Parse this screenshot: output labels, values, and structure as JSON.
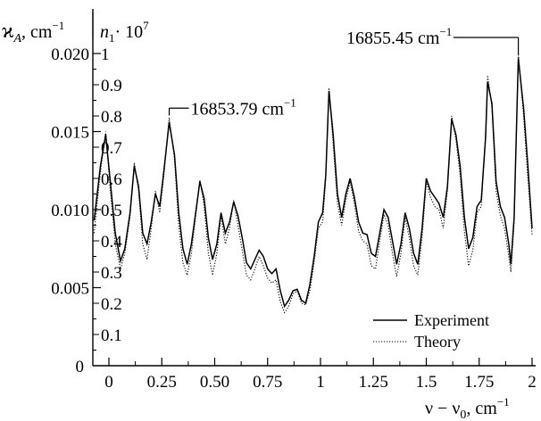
{
  "chart_data": {
    "type": "line",
    "xlabel": "ν − ν0, cm−1",
    "xlabel_parts": {
      "main": "ν − ν",
      "sub": "0",
      "unit": ", cm",
      "sup": "−1"
    },
    "left_axis_label": {
      "symbol": "ϰ",
      "sub": "A",
      "unit": ", cm",
      "sup": "−1"
    },
    "right_axis_label": {
      "symbol": "n",
      "sub": "1",
      "mid": "· 10",
      "sup": "7"
    },
    "xlim": [
      -0.1,
      2.05
    ],
    "ylim_left": [
      0,
      0.02
    ],
    "ylim_right": [
      0,
      1
    ],
    "x_ticks": [
      {
        "value": 0,
        "label": "0"
      },
      {
        "value": 0.25,
        "label": "0.25"
      },
      {
        "value": 0.5,
        "label": "0.50"
      },
      {
        "value": 0.75,
        "label": "0.75"
      },
      {
        "value": 1,
        "label": "1"
      },
      {
        "value": 1.25,
        "label": "1.25"
      },
      {
        "value": 1.5,
        "label": "1.5"
      },
      {
        "value": 1.75,
        "label": "1.75"
      },
      {
        "value": 2,
        "label": "2"
      }
    ],
    "left_ticks": [
      {
        "value": 0,
        "label": "0"
      },
      {
        "value": 0.005,
        "label": "0.005"
      },
      {
        "value": 0.01,
        "label": "0.010"
      },
      {
        "value": 0.015,
        "label": "0.015"
      },
      {
        "value": 0.02,
        "label": "0.020"
      }
    ],
    "right_ticks": [
      {
        "value": 0.1,
        "label": "0.1"
      },
      {
        "value": 0.2,
        "label": "0.2"
      },
      {
        "value": 0.3,
        "label": "0.3"
      },
      {
        "value": 0.4,
        "label": "0.4"
      },
      {
        "value": 0.5,
        "label": "0.5"
      },
      {
        "value": 0.6,
        "label": "0.6"
      },
      {
        "value": 0.7,
        "label": "0.7"
      },
      {
        "value": 0.8,
        "label": "0.8"
      },
      {
        "value": 0.9,
        "label": "0.9"
      },
      {
        "value": 1,
        "label": "1"
      }
    ],
    "annotations": [
      {
        "text": "16853.79 cm",
        "sup": "−1",
        "x": 0.285,
        "y": 0.0158,
        "label_y": 0.0165,
        "label_x_end": 0.6
      },
      {
        "text": "16855.45 cm",
        "sup": "−1",
        "x": 1.935,
        "y": 0.0197,
        "label_y": 0.02035,
        "label_x_end": 1.935
      }
    ],
    "legend": {
      "position": "bottom-right",
      "entries": [
        {
          "name": "Experiment",
          "style": "solid"
        },
        {
          "name": "Theory",
          "style": "dotted"
        }
      ]
    },
    "series": [
      {
        "name": "Experiment",
        "style": "solid",
        "points": [
          [
            -0.07,
            0.0093
          ],
          [
            -0.04,
            0.0128
          ],
          [
            -0.015,
            0.0148
          ],
          [
            0.005,
            0.012
          ],
          [
            0.03,
            0.0085
          ],
          [
            0.055,
            0.0067
          ],
          [
            0.075,
            0.0075
          ],
          [
            0.1,
            0.0098
          ],
          [
            0.12,
            0.0128
          ],
          [
            0.14,
            0.0115
          ],
          [
            0.16,
            0.0085
          ],
          [
            0.18,
            0.0078
          ],
          [
            0.2,
            0.0092
          ],
          [
            0.22,
            0.011
          ],
          [
            0.24,
            0.0102
          ],
          [
            0.26,
            0.0125
          ],
          [
            0.285,
            0.0156
          ],
          [
            0.31,
            0.0135
          ],
          [
            0.33,
            0.0098
          ],
          [
            0.35,
            0.0075
          ],
          [
            0.37,
            0.0065
          ],
          [
            0.39,
            0.0078
          ],
          [
            0.41,
            0.0098
          ],
          [
            0.43,
            0.0118
          ],
          [
            0.45,
            0.0107
          ],
          [
            0.47,
            0.0082
          ],
          [
            0.49,
            0.0068
          ],
          [
            0.51,
            0.0078
          ],
          [
            0.53,
            0.0098
          ],
          [
            0.55,
            0.0085
          ],
          [
            0.57,
            0.0092
          ],
          [
            0.59,
            0.0105
          ],
          [
            0.61,
            0.0096
          ],
          [
            0.63,
            0.0082
          ],
          [
            0.65,
            0.0066
          ],
          [
            0.67,
            0.0062
          ],
          [
            0.69,
            0.0068
          ],
          [
            0.71,
            0.0074
          ],
          [
            0.73,
            0.007
          ],
          [
            0.75,
            0.0062
          ],
          [
            0.77,
            0.0059
          ],
          [
            0.79,
            0.0062
          ],
          [
            0.81,
            0.0048
          ],
          [
            0.83,
            0.0038
          ],
          [
            0.85,
            0.0042
          ],
          [
            0.87,
            0.0048
          ],
          [
            0.89,
            0.0049
          ],
          [
            0.91,
            0.0042
          ],
          [
            0.93,
            0.004
          ],
          [
            0.95,
            0.0052
          ],
          [
            0.97,
            0.007
          ],
          [
            0.99,
            0.0092
          ],
          [
            1.01,
            0.0098
          ],
          [
            1.025,
            0.0122
          ],
          [
            1.04,
            0.0176
          ],
          [
            1.06,
            0.0148
          ],
          [
            1.08,
            0.011
          ],
          [
            1.1,
            0.0095
          ],
          [
            1.12,
            0.011
          ],
          [
            1.14,
            0.012
          ],
          [
            1.16,
            0.0108
          ],
          [
            1.18,
            0.0092
          ],
          [
            1.2,
            0.0085
          ],
          [
            1.22,
            0.0084
          ],
          [
            1.24,
            0.0072
          ],
          [
            1.26,
            0.007
          ],
          [
            1.28,
            0.0085
          ],
          [
            1.3,
            0.01
          ],
          [
            1.32,
            0.0095
          ],
          [
            1.34,
            0.008
          ],
          [
            1.36,
            0.0065
          ],
          [
            1.38,
            0.0078
          ],
          [
            1.4,
            0.0098
          ],
          [
            1.42,
            0.0088
          ],
          [
            1.44,
            0.0072
          ],
          [
            1.46,
            0.0065
          ],
          [
            1.48,
            0.0088
          ],
          [
            1.5,
            0.012
          ],
          [
            1.52,
            0.0112
          ],
          [
            1.54,
            0.0108
          ],
          [
            1.56,
            0.0104
          ],
          [
            1.58,
            0.0095
          ],
          [
            1.6,
            0.0115
          ],
          [
            1.62,
            0.0158
          ],
          [
            1.64,
            0.0148
          ],
          [
            1.66,
            0.0128
          ],
          [
            1.68,
            0.0095
          ],
          [
            1.7,
            0.0075
          ],
          [
            1.72,
            0.0082
          ],
          [
            1.74,
            0.0102
          ],
          [
            1.76,
            0.0106
          ],
          [
            1.78,
            0.0146
          ],
          [
            1.79,
            0.0182
          ],
          [
            1.81,
            0.0168
          ],
          [
            1.83,
            0.0118
          ],
          [
            1.85,
            0.0102
          ],
          [
            1.87,
            0.0095
          ],
          [
            1.89,
            0.0078
          ],
          [
            1.9,
            0.0065
          ],
          [
            1.915,
            0.0095
          ],
          [
            1.935,
            0.0197
          ],
          [
            1.96,
            0.0165
          ],
          [
            1.98,
            0.0128
          ],
          [
            2.0,
            0.0088
          ]
        ]
      },
      {
        "name": "Theory",
        "style": "dotted",
        "points": [
          [
            -0.07,
            0.0085
          ],
          [
            -0.04,
            0.0124
          ],
          [
            -0.015,
            0.015
          ],
          [
            0.005,
            0.0115
          ],
          [
            0.03,
            0.0078
          ],
          [
            0.055,
            0.0062
          ],
          [
            0.075,
            0.0072
          ],
          [
            0.1,
            0.0096
          ],
          [
            0.12,
            0.013
          ],
          [
            0.14,
            0.0112
          ],
          [
            0.16,
            0.0078
          ],
          [
            0.18,
            0.0068
          ],
          [
            0.2,
            0.0088
          ],
          [
            0.22,
            0.0112
          ],
          [
            0.24,
            0.0098
          ],
          [
            0.26,
            0.0122
          ],
          [
            0.285,
            0.0159
          ],
          [
            0.31,
            0.0132
          ],
          [
            0.33,
            0.009
          ],
          [
            0.35,
            0.0066
          ],
          [
            0.37,
            0.0058
          ],
          [
            0.39,
            0.0072
          ],
          [
            0.41,
            0.0096
          ],
          [
            0.43,
            0.0119
          ],
          [
            0.45,
            0.0102
          ],
          [
            0.47,
            0.0072
          ],
          [
            0.49,
            0.0058
          ],
          [
            0.51,
            0.0072
          ],
          [
            0.53,
            0.0096
          ],
          [
            0.55,
            0.0078
          ],
          [
            0.57,
            0.0088
          ],
          [
            0.59,
            0.0106
          ],
          [
            0.61,
            0.009
          ],
          [
            0.63,
            0.0074
          ],
          [
            0.65,
            0.0058
          ],
          [
            0.67,
            0.0055
          ],
          [
            0.69,
            0.0062
          ],
          [
            0.71,
            0.007
          ],
          [
            0.73,
            0.0064
          ],
          [
            0.75,
            0.0056
          ],
          [
            0.77,
            0.0053
          ],
          [
            0.79,
            0.0055
          ],
          [
            0.81,
            0.0041
          ],
          [
            0.83,
            0.0034
          ],
          [
            0.85,
            0.0038
          ],
          [
            0.87,
            0.0046
          ],
          [
            0.89,
            0.0048
          ],
          [
            0.91,
            0.004
          ],
          [
            0.93,
            0.0039
          ],
          [
            0.95,
            0.0048
          ],
          [
            0.97,
            0.0066
          ],
          [
            0.99,
            0.0088
          ],
          [
            1.01,
            0.0092
          ],
          [
            1.025,
            0.012
          ],
          [
            1.04,
            0.0178
          ],
          [
            1.06,
            0.0142
          ],
          [
            1.08,
            0.0104
          ],
          [
            1.1,
            0.009
          ],
          [
            1.12,
            0.0106
          ],
          [
            1.14,
            0.0118
          ],
          [
            1.16,
            0.0104
          ],
          [
            1.18,
            0.0086
          ],
          [
            1.2,
            0.008
          ],
          [
            1.22,
            0.0078
          ],
          [
            1.24,
            0.0064
          ],
          [
            1.26,
            0.0062
          ],
          [
            1.28,
            0.008
          ],
          [
            1.3,
            0.0097
          ],
          [
            1.32,
            0.009
          ],
          [
            1.34,
            0.0072
          ],
          [
            1.36,
            0.0057
          ],
          [
            1.38,
            0.0072
          ],
          [
            1.4,
            0.0095
          ],
          [
            1.42,
            0.0082
          ],
          [
            1.44,
            0.0064
          ],
          [
            1.46,
            0.0058
          ],
          [
            1.48,
            0.0082
          ],
          [
            1.5,
            0.0118
          ],
          [
            1.52,
            0.0108
          ],
          [
            1.54,
            0.0102
          ],
          [
            1.56,
            0.01
          ],
          [
            1.58,
            0.0088
          ],
          [
            1.6,
            0.0112
          ],
          [
            1.62,
            0.016
          ],
          [
            1.64,
            0.0145
          ],
          [
            1.66,
            0.0122
          ],
          [
            1.68,
            0.0086
          ],
          [
            1.7,
            0.0064
          ],
          [
            1.72,
            0.0074
          ],
          [
            1.74,
            0.0098
          ],
          [
            1.76,
            0.0102
          ],
          [
            1.78,
            0.0148
          ],
          [
            1.79,
            0.0186
          ],
          [
            1.81,
            0.0166
          ],
          [
            1.83,
            0.0112
          ],
          [
            1.85,
            0.0096
          ],
          [
            1.87,
            0.0088
          ],
          [
            1.89,
            0.007
          ],
          [
            1.9,
            0.006
          ],
          [
            1.915,
            0.0092
          ],
          [
            1.935,
            0.02
          ],
          [
            1.96,
            0.016
          ],
          [
            1.98,
            0.012
          ],
          [
            2.0,
            0.0084
          ]
        ]
      }
    ]
  }
}
